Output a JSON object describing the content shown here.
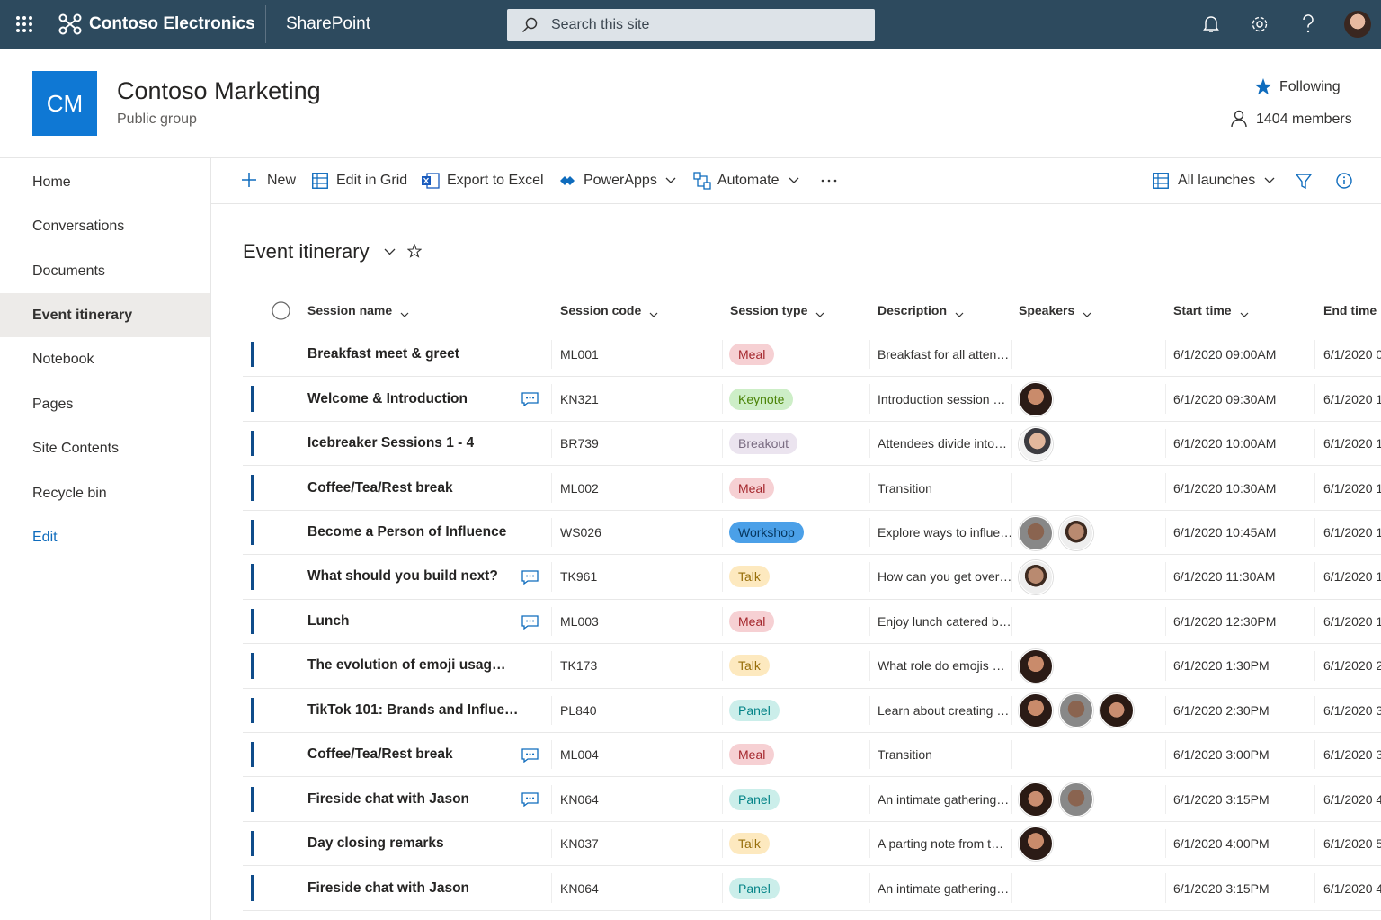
{
  "header": {
    "app_name": "Contoso Electronics",
    "product": "SharePoint",
    "search_placeholder": "Search this site"
  },
  "site": {
    "logo": "CM",
    "title": "Contoso Marketing",
    "subtitle": "Public group",
    "following": "Following",
    "members": "1404 members"
  },
  "nav": {
    "items": [
      "Home",
      "Conversations",
      "Documents",
      "Event itinerary",
      "Notebook",
      "Pages",
      "Site Contents",
      "Recycle bin"
    ],
    "edit": "Edit"
  },
  "toolbar": {
    "new": "New",
    "edit_grid": "Edit in Grid",
    "export": "Export to Excel",
    "powerapps": "PowerApps",
    "automate": "Automate",
    "view": "All launches"
  },
  "list": {
    "title": "Event itinerary",
    "columns": [
      "Session name",
      "Session code",
      "Session type",
      "Description",
      "Speakers",
      "Start time",
      "End time"
    ],
    "rows": [
      {
        "name": "Breakfast meet & greet",
        "code": "ML001",
        "type": "Meal",
        "tag_bg": "#f6d0d3",
        "tag_fg": "#a4262c",
        "description": "Breakfast for all atten…",
        "start": "6/1/2020 09:00AM",
        "end": "6/1/2020 0"
      },
      {
        "name": "Welcome & Introduction",
        "code": "KN321",
        "type": "Keynote",
        "tag_bg": "#cdeec7",
        "tag_fg": "#498205",
        "description": "Introduction session …",
        "start": "6/1/2020 09:30AM",
        "end": "6/1/2020 1"
      },
      {
        "name": "Icebreaker Sessions 1 - 4",
        "code": "BR739",
        "type": "Breakout",
        "tag_bg": "#ebe4ef",
        "tag_fg": "#7a6c82",
        "description": "Attendees divide into…",
        "start": "6/1/2020 10:00AM",
        "end": "6/1/2020 1"
      },
      {
        "name": "Coffee/Tea/Rest break",
        "code": "ML002",
        "type": "Meal",
        "tag_bg": "#f6d0d3",
        "tag_fg": "#a4262c",
        "description": "Transition",
        "start": "6/1/2020 10:30AM",
        "end": "6/1/2020 1"
      },
      {
        "name": "Become a Person of Influence",
        "code": "WS026",
        "type": "Workshop",
        "tag_bg": "#4ba0e8",
        "tag_fg": "#06365e",
        "description": "Explore ways to influe…",
        "start": "6/1/2020 10:45AM",
        "end": "6/1/2020 1"
      },
      {
        "name": "What should you build next?",
        "code": "TK961",
        "type": "Talk",
        "tag_bg": "#fde9bf",
        "tag_fg": "#986f0b",
        "description": "How can you get over…",
        "start": "6/1/2020 11:30AM",
        "end": "6/1/2020 1"
      },
      {
        "name": "Lunch",
        "code": "ML003",
        "type": "Meal",
        "tag_bg": "#f6d0d3",
        "tag_fg": "#a4262c",
        "description": "Enjoy lunch catered b…",
        "start": "6/1/2020 12:30PM",
        "end": "6/1/2020 1"
      },
      {
        "name": "The evolution of emoji usag…",
        "code": "TK173",
        "type": "Talk",
        "tag_bg": "#fde9bf",
        "tag_fg": "#986f0b",
        "description": "What role do emojis …",
        "start": "6/1/2020 1:30PM",
        "end": "6/1/2020 2"
      },
      {
        "name": "TikTok 101: Brands and Influe…",
        "code": "PL840",
        "type": "Panel",
        "tag_bg": "#cbeeea",
        "tag_fg": "#038387",
        "description": "Learn about creating …",
        "start": "6/1/2020 2:30PM",
        "end": "6/1/2020 3"
      },
      {
        "name": "Coffee/Tea/Rest break",
        "code": "ML004",
        "type": "Meal",
        "tag_bg": "#f6d0d3",
        "tag_fg": "#a4262c",
        "description": "Transition",
        "start": "6/1/2020 3:00PM",
        "end": "6/1/2020 3"
      },
      {
        "name": "Fireside chat with Jason",
        "code": "KN064",
        "type": "Panel",
        "tag_bg": "#cbeeea",
        "tag_fg": "#038387",
        "description": "An intimate gathering…",
        "start": "6/1/2020 3:15PM",
        "end": "6/1/2020 4"
      },
      {
        "name": "Day closing remarks",
        "code": "KN037",
        "type": "Talk",
        "tag_bg": "#fde9bf",
        "tag_fg": "#986f0b",
        "description": "A parting note from t…",
        "start": "6/1/2020 4:00PM",
        "end": "6/1/2020 5"
      },
      {
        "name": "Fireside chat with Jason",
        "code": "KN064",
        "type": "Panel",
        "tag_bg": "#cbeeea",
        "tag_fg": "#038387",
        "description": "An intimate gathering…",
        "start": "6/1/2020 3:15PM",
        "end": "6/1/2020 4"
      }
    ]
  }
}
